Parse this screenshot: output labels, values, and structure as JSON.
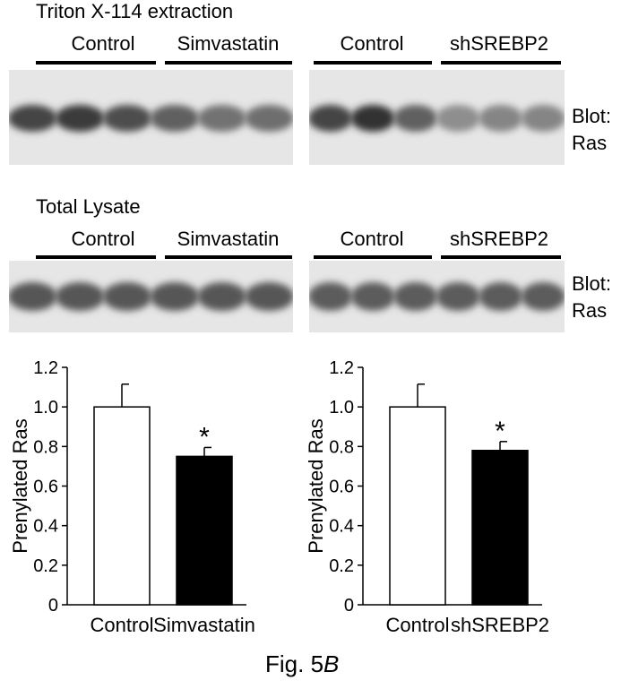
{
  "figure": {
    "caption_prefix": "Fig. 5",
    "caption_suffix": "B"
  },
  "blot_rows": [
    {
      "title": "Triton X-114 extraction",
      "blot_label_line1": "Blot:",
      "blot_label_line2": "Ras",
      "panels": [
        {
          "groups": [
            "Control",
            "Simvastatin"
          ],
          "band_intensity": [
            0.85,
            0.9,
            0.8,
            0.7,
            0.6,
            0.62
          ]
        },
        {
          "groups": [
            "Control",
            "shSREBP2"
          ],
          "band_intensity": [
            0.85,
            0.95,
            0.7,
            0.45,
            0.5,
            0.5
          ]
        }
      ]
    },
    {
      "title": "Total Lysate",
      "blot_label_line1": "Blot:",
      "blot_label_line2": "Ras",
      "panels": [
        {
          "groups": [
            "Control",
            "Simvastatin"
          ],
          "band_intensity": [
            0.75,
            0.75,
            0.75,
            0.75,
            0.75,
            0.75
          ]
        },
        {
          "groups": [
            "Control",
            "shSREBP2"
          ],
          "band_intensity": [
            0.72,
            0.72,
            0.72,
            0.72,
            0.72,
            0.72
          ]
        }
      ]
    }
  ],
  "chart_data": [
    {
      "type": "bar",
      "categories": [
        "Control",
        "Simvastatin"
      ],
      "values": [
        1.0,
        0.75
      ],
      "errors": [
        0.115,
        0.045
      ],
      "bar_fills": [
        "#ffffff",
        "#000000"
      ],
      "significance": [
        "",
        "*"
      ],
      "ylabel": "Prenylated Ras",
      "ylim": [
        0,
        1.2
      ],
      "yticks": [
        "0",
        "0.2",
        "0.4",
        "0.6",
        "0.8",
        "1.0",
        "1.2"
      ]
    },
    {
      "type": "bar",
      "categories": [
        "Control",
        "shSREBP2"
      ],
      "values": [
        1.0,
        0.78
      ],
      "errors": [
        0.115,
        0.045
      ],
      "bar_fills": [
        "#ffffff",
        "#000000"
      ],
      "significance": [
        "",
        "*"
      ],
      "ylabel": "Prenylated Ras",
      "ylim": [
        0,
        1.2
      ],
      "yticks": [
        "0",
        "0.2",
        "0.4",
        "0.6",
        "0.8",
        "1.0",
        "1.2"
      ]
    }
  ]
}
